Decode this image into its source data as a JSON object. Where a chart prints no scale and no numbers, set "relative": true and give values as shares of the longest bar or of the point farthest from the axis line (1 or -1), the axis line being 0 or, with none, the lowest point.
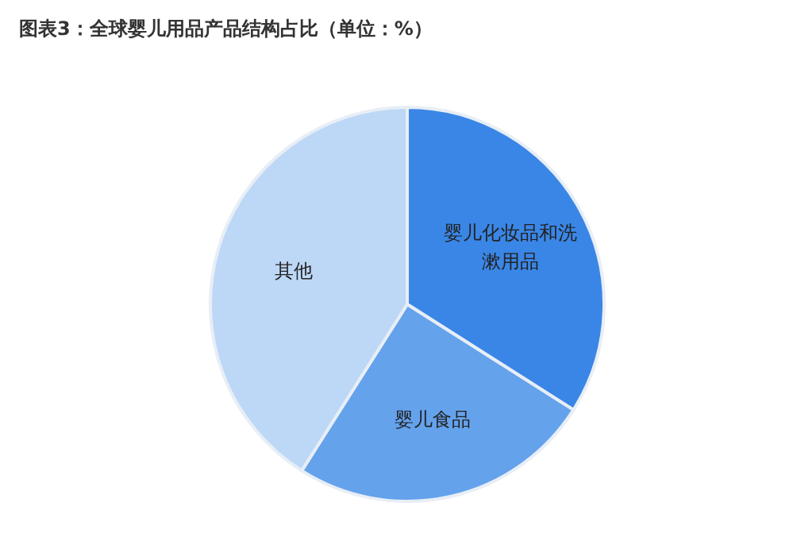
{
  "chart_data": {
    "type": "pie",
    "title": "图表3：全球婴儿用品产品结构占比（单位：%）",
    "categories": [
      "婴儿化妆品和洗漱用品",
      "婴儿食品",
      "其他"
    ],
    "values": [
      34,
      25,
      41
    ],
    "colors": [
      "#3a86e6",
      "#64a2ec",
      "#bdd7f6"
    ],
    "relative": true
  }
}
